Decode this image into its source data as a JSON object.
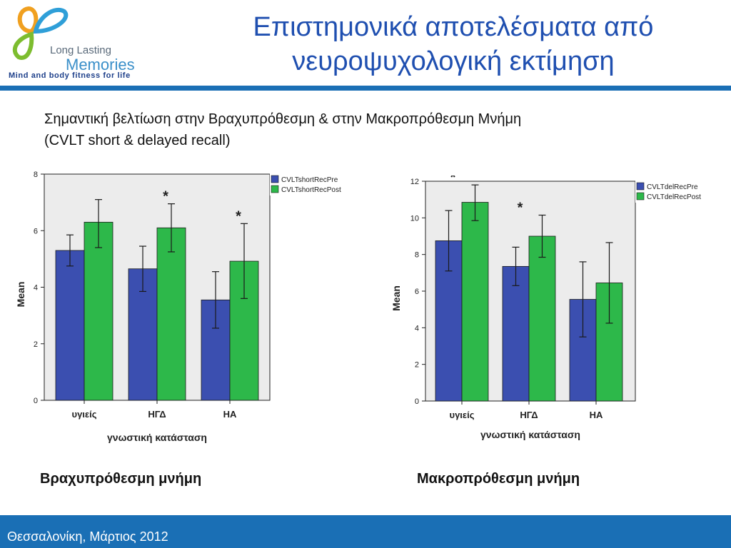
{
  "logo": {
    "line1": "Long Lasting",
    "line2": "Memories",
    "tagline": "Mind and body fitness for life"
  },
  "slide": {
    "title": "Επιστημονικά αποτελέσματα από νευροψυχολογική εκτίμηση",
    "subtitle_line1": "Σημαντική βελτίωση στην Βραχυπρόθεσμη & στην Μακροπρόθεσμη Μνήμη",
    "subtitle_line2": "(CVLT short & delayed recall)",
    "caption_left": "Βραχυπρόθεσμη μνήμη",
    "caption_right": "Μακροπρόθεσμη μνήμη",
    "footer": "Θεσσαλονίκη, Μάρτιος 2012"
  },
  "colors": {
    "pre": "#3b4fb0",
    "post": "#2db84a",
    "plot_bg": "#ececec",
    "accent": "#1a6fb5"
  },
  "chart_data": [
    {
      "type": "bar",
      "categories": [
        "υγιείς",
        "ΗΓΔ",
        "ΗΑ"
      ],
      "series": [
        {
          "name": "CVLTshortRecPre",
          "values": [
            5.3,
            4.65,
            3.55
          ],
          "err_low": [
            4.75,
            3.85,
            2.55
          ],
          "err_high": [
            5.85,
            5.45,
            4.55
          ]
        },
        {
          "name": "CVLTshortRecPost",
          "values": [
            6.3,
            6.1,
            4.92
          ],
          "err_low": [
            5.4,
            5.25,
            3.6
          ],
          "err_high": [
            7.1,
            6.95,
            6.25
          ]
        }
      ],
      "significance": [
        "",
        "*",
        "*"
      ],
      "xlabel": "γνωστική κατάσταση",
      "ylabel": "Mean",
      "ylim": [
        0,
        8
      ],
      "yticks": [
        "0",
        "2",
        "4",
        "6",
        "8"
      ],
      "legend": "top-right",
      "grid": false
    },
    {
      "type": "bar",
      "categories": [
        "υγιείς",
        "ΗΓΔ",
        "ΗΑ"
      ],
      "series": [
        {
          "name": "CVLTdelRecPre",
          "values": [
            8.75,
            7.35,
            5.55
          ],
          "err_low": [
            7.1,
            6.3,
            3.5
          ],
          "err_high": [
            10.4,
            8.4,
            7.6
          ]
        },
        {
          "name": "CVLTdelRecPost",
          "values": [
            10.85,
            9.0,
            6.45
          ],
          "err_low": [
            9.85,
            7.85,
            4.25
          ],
          "err_high": [
            11.8,
            10.15,
            8.65
          ]
        }
      ],
      "significance": [
        "*",
        "*",
        ""
      ],
      "xlabel": "γνωστική κατάσταση",
      "ylabel": "Mean",
      "ylim": [
        0,
        12
      ],
      "yticks": [
        "0",
        "2",
        "4",
        "6",
        "8",
        "10",
        "12"
      ],
      "legend": "top-right",
      "grid": false
    }
  ]
}
